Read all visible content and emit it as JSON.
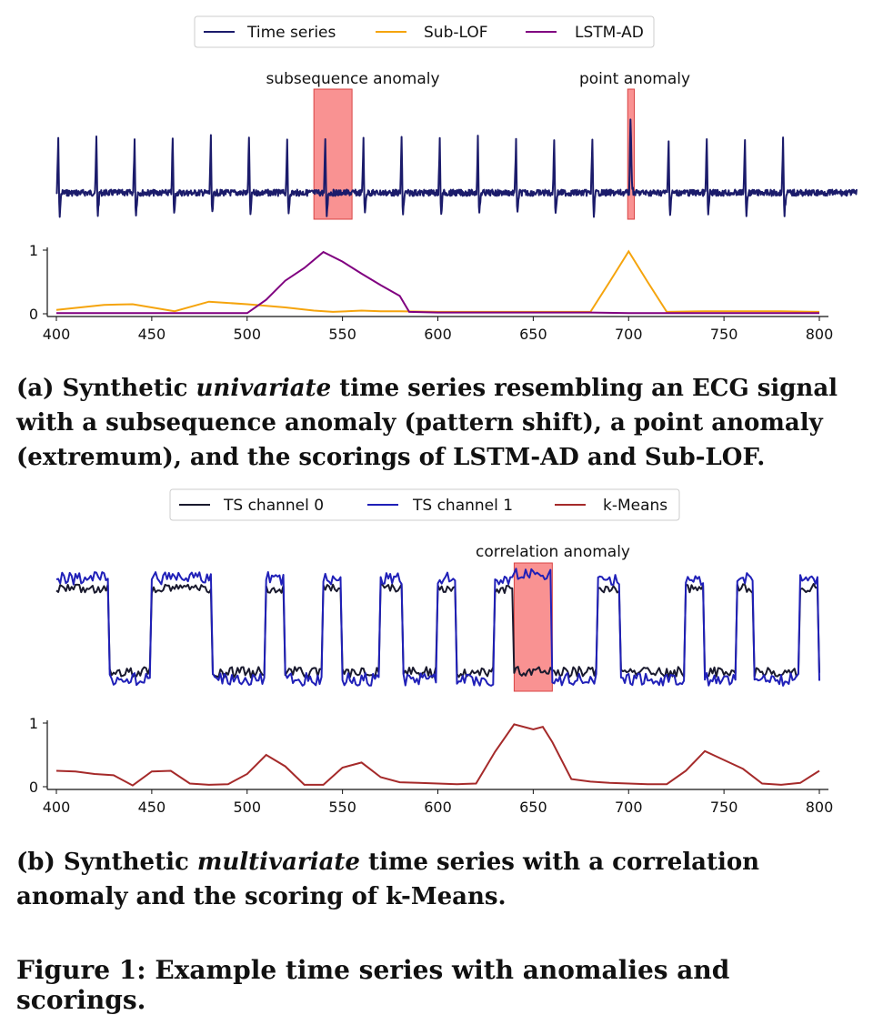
{
  "chart_data": [
    {
      "type": "line",
      "title": "",
      "legend": [
        {
          "name": "Time series",
          "color": "#1b1b6b"
        },
        {
          "name": "Sub-LOF",
          "color": "#f5a40d"
        },
        {
          "name": "LSTM-AD",
          "color": "#800080"
        }
      ],
      "annotations": [
        {
          "text": "subsequence anomaly",
          "start": 535,
          "end": 555
        },
        {
          "text": "point anomaly",
          "start": 700,
          "end": 703
        }
      ],
      "xlim": [
        400,
        800
      ],
      "x_ticks": [
        "400",
        "450",
        "500",
        "550",
        "600",
        "650",
        "700",
        "750",
        "800"
      ],
      "score_yticks": [
        "0",
        "1"
      ],
      "score_ylim": [
        0,
        1
      ],
      "spike_positions": [
        401,
        421,
        441,
        461,
        481,
        501,
        521,
        541,
        561,
        581,
        601,
        621,
        641,
        661,
        681,
        701,
        721,
        741,
        761,
        781
      ],
      "series": [
        {
          "name": "Sub-LOF",
          "x": [
            400,
            425,
            440,
            462,
            480,
            500,
            520,
            535,
            545,
            560,
            570,
            580,
            600,
            620,
            640,
            660,
            680,
            690,
            700,
            710,
            720,
            740,
            760,
            780,
            800
          ],
          "values": [
            0.06,
            0.14,
            0.15,
            0.04,
            0.19,
            0.15,
            0.1,
            0.05,
            0.03,
            0.05,
            0.04,
            0.04,
            0.03,
            0.03,
            0.03,
            0.03,
            0.03,
            0.5,
            0.98,
            0.5,
            0.03,
            0.04,
            0.04,
            0.04,
            0.03
          ]
        },
        {
          "name": "LSTM-AD",
          "x": [
            400,
            480,
            500,
            510,
            520,
            530,
            540,
            550,
            560,
            570,
            580,
            585,
            600,
            650,
            680,
            700,
            720,
            800
          ],
          "values": [
            0.01,
            0.01,
            0.01,
            0.22,
            0.52,
            0.72,
            0.97,
            0.82,
            0.63,
            0.45,
            0.28,
            0.03,
            0.02,
            0.02,
            0.02,
            0.01,
            0.01,
            0.01
          ]
        }
      ]
    },
    {
      "type": "line",
      "title": "",
      "legend": [
        {
          "name": "TS channel 0",
          "color": "#1a1a2e"
        },
        {
          "name": "TS channel 1",
          "color": "#2020b8"
        },
        {
          "name": "k-Means",
          "color": "#a52a2a"
        }
      ],
      "annotations": [
        {
          "text": "correlation anomaly",
          "start": 640,
          "end": 660
        }
      ],
      "xlim": [
        400,
        800
      ],
      "x_ticks": [
        "400",
        "450",
        "500",
        "550",
        "600",
        "650",
        "700",
        "750",
        "800"
      ],
      "score_yticks": [
        "0",
        "1"
      ],
      "score_ylim": [
        0,
        1
      ],
      "high_intervals": [
        [
          400,
          428
        ],
        [
          450,
          482
        ],
        [
          510,
          520
        ],
        [
          540,
          550
        ],
        [
          570,
          582
        ],
        [
          600,
          610
        ],
        [
          630,
          640
        ],
        [
          640,
          660
        ],
        [
          684,
          696
        ],
        [
          730,
          740
        ],
        [
          757,
          766
        ],
        [
          790,
          800
        ]
      ],
      "series": [
        {
          "name": "k-Means",
          "x": [
            400,
            410,
            420,
            430,
            440,
            450,
            460,
            470,
            480,
            490,
            500,
            510,
            520,
            530,
            540,
            550,
            560,
            570,
            580,
            590,
            600,
            610,
            620,
            630,
            640,
            650,
            655,
            660,
            670,
            680,
            690,
            700,
            710,
            720,
            730,
            740,
            750,
            760,
            770,
            780,
            790,
            800
          ],
          "values": [
            0.25,
            0.24,
            0.2,
            0.18,
            0.02,
            0.24,
            0.25,
            0.05,
            0.03,
            0.04,
            0.2,
            0.5,
            0.32,
            0.03,
            0.03,
            0.3,
            0.38,
            0.15,
            0.07,
            0.06,
            0.05,
            0.04,
            0.05,
            0.55,
            0.98,
            0.9,
            0.94,
            0.7,
            0.12,
            0.08,
            0.06,
            0.05,
            0.04,
            0.04,
            0.25,
            0.56,
            0.42,
            0.28,
            0.05,
            0.03,
            0.06,
            0.25
          ]
        }
      ]
    }
  ],
  "captions": {
    "a_prefix": "(a) Synthetic ",
    "a_italic": "univariate",
    "a_rest": " time series resembling an ECG signal with a subsequence anomaly (pattern shift), a point anomaly (extremum), and the scorings of LSTM-AD and Sub-LOF.",
    "b_prefix": "(b) Synthetic ",
    "b_italic": "multivariate",
    "b_rest": " time series with a correlation anomaly and the scoring of k-Means.",
    "figure": "Figure 1: Example time series with anomalies and scorings."
  }
}
